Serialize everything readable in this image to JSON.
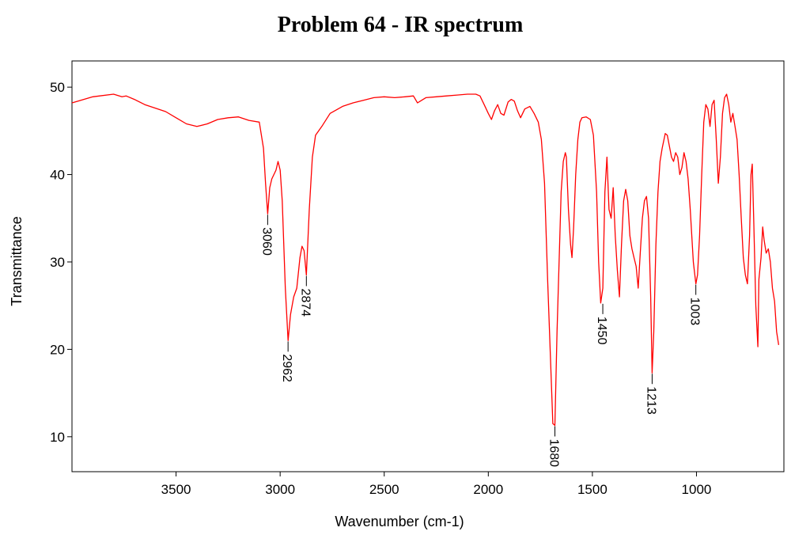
{
  "chart_data": {
    "type": "line",
    "title": "Problem 64 - IR spectrum",
    "xlabel": "Wavenumber (cm-1)",
    "ylabel": "Transmittance",
    "xlim": [
      4000,
      580
    ],
    "ylim": [
      6,
      53
    ],
    "x_reversed": true,
    "x_ticks": [
      3500,
      3000,
      2500,
      2000,
      1500,
      1000
    ],
    "y_ticks": [
      10,
      20,
      30,
      40,
      50
    ],
    "grid": false,
    "legend": "none",
    "series": [
      {
        "color": "#ff0000",
        "points": [
          [
            4000,
            48.2
          ],
          [
            3900,
            48.9
          ],
          [
            3800,
            49.2
          ],
          [
            3760,
            48.9
          ],
          [
            3740,
            49.0
          ],
          [
            3700,
            48.6
          ],
          [
            3650,
            48.0
          ],
          [
            3600,
            47.6
          ],
          [
            3550,
            47.2
          ],
          [
            3500,
            46.5
          ],
          [
            3450,
            45.8
          ],
          [
            3400,
            45.5
          ],
          [
            3350,
            45.8
          ],
          [
            3300,
            46.3
          ],
          [
            3250,
            46.5
          ],
          [
            3200,
            46.6
          ],
          [
            3150,
            46.2
          ],
          [
            3100,
            46.0
          ],
          [
            3080,
            43.0
          ],
          [
            3070,
            39.0
          ],
          [
            3060,
            35.5
          ],
          [
            3050,
            38.5
          ],
          [
            3040,
            39.5
          ],
          [
            3020,
            40.5
          ],
          [
            3010,
            41.5
          ],
          [
            3000,
            40.5
          ],
          [
            2990,
            37.0
          ],
          [
            2975,
            27.0
          ],
          [
            2962,
            21.0
          ],
          [
            2950,
            24.0
          ],
          [
            2935,
            26.0
          ],
          [
            2920,
            27.0
          ],
          [
            2905,
            30.5
          ],
          [
            2895,
            31.8
          ],
          [
            2885,
            31.3
          ],
          [
            2874,
            28.5
          ],
          [
            2860,
            36.0
          ],
          [
            2845,
            42.0
          ],
          [
            2830,
            44.5
          ],
          [
            2800,
            45.5
          ],
          [
            2760,
            47.0
          ],
          [
            2700,
            47.8
          ],
          [
            2650,
            48.2
          ],
          [
            2600,
            48.5
          ],
          [
            2550,
            48.8
          ],
          [
            2500,
            48.9
          ],
          [
            2450,
            48.8
          ],
          [
            2400,
            48.9
          ],
          [
            2360,
            49.0
          ],
          [
            2340,
            48.2
          ],
          [
            2320,
            48.5
          ],
          [
            2300,
            48.8
          ],
          [
            2250,
            48.9
          ],
          [
            2200,
            49.0
          ],
          [
            2150,
            49.1
          ],
          [
            2100,
            49.2
          ],
          [
            2060,
            49.2
          ],
          [
            2040,
            49.0
          ],
          [
            2020,
            48.0
          ],
          [
            2000,
            47.0
          ],
          [
            1985,
            46.3
          ],
          [
            1970,
            47.3
          ],
          [
            1955,
            48.0
          ],
          [
            1940,
            47.0
          ],
          [
            1925,
            46.8
          ],
          [
            1905,
            48.3
          ],
          [
            1890,
            48.6
          ],
          [
            1875,
            48.4
          ],
          [
            1860,
            47.3
          ],
          [
            1845,
            46.5
          ],
          [
            1825,
            47.5
          ],
          [
            1800,
            47.8
          ],
          [
            1780,
            47.0
          ],
          [
            1760,
            46.0
          ],
          [
            1745,
            44.0
          ],
          [
            1730,
            39.0
          ],
          [
            1715,
            28.0
          ],
          [
            1700,
            18.0
          ],
          [
            1690,
            11.5
          ],
          [
            1680,
            11.3
          ],
          [
            1670,
            22.0
          ],
          [
            1660,
            30.0
          ],
          [
            1650,
            38.0
          ],
          [
            1640,
            41.5
          ],
          [
            1630,
            42.5
          ],
          [
            1625,
            42.0
          ],
          [
            1615,
            36.0
          ],
          [
            1605,
            32.0
          ],
          [
            1598,
            30.5
          ],
          [
            1590,
            34.0
          ],
          [
            1580,
            40.0
          ],
          [
            1570,
            44.0
          ],
          [
            1560,
            46.0
          ],
          [
            1550,
            46.5
          ],
          [
            1530,
            46.6
          ],
          [
            1510,
            46.3
          ],
          [
            1495,
            44.5
          ],
          [
            1480,
            38.0
          ],
          [
            1470,
            30.0
          ],
          [
            1460,
            25.3
          ],
          [
            1450,
            27.0
          ],
          [
            1440,
            38.0
          ],
          [
            1430,
            42.0
          ],
          [
            1420,
            36.0
          ],
          [
            1410,
            35.0
          ],
          [
            1400,
            38.5
          ],
          [
            1390,
            33.0
          ],
          [
            1380,
            29.0
          ],
          [
            1370,
            26.0
          ],
          [
            1360,
            32.0
          ],
          [
            1350,
            37.0
          ],
          [
            1340,
            38.3
          ],
          [
            1330,
            37.0
          ],
          [
            1320,
            33.0
          ],
          [
            1310,
            31.5
          ],
          [
            1300,
            30.5
          ],
          [
            1290,
            29.5
          ],
          [
            1280,
            27.0
          ],
          [
            1270,
            31.0
          ],
          [
            1260,
            35.0
          ],
          [
            1250,
            37.0
          ],
          [
            1240,
            37.5
          ],
          [
            1230,
            35.0
          ],
          [
            1220,
            26.0
          ],
          [
            1213,
            17.3
          ],
          [
            1205,
            22.0
          ],
          [
            1195,
            32.0
          ],
          [
            1185,
            38.0
          ],
          [
            1175,
            41.5
          ],
          [
            1165,
            43.0
          ],
          [
            1150,
            44.7
          ],
          [
            1140,
            44.5
          ],
          [
            1120,
            42.0
          ],
          [
            1110,
            41.5
          ],
          [
            1100,
            42.5
          ],
          [
            1090,
            42.0
          ],
          [
            1080,
            40.0
          ],
          [
            1070,
            40.8
          ],
          [
            1060,
            42.5
          ],
          [
            1050,
            41.5
          ],
          [
            1040,
            39.5
          ],
          [
            1030,
            36.0
          ],
          [
            1015,
            30.0
          ],
          [
            1003,
            27.5
          ],
          [
            995,
            28.5
          ],
          [
            985,
            33.0
          ],
          [
            975,
            40.0
          ],
          [
            965,
            46.0
          ],
          [
            955,
            48.0
          ],
          [
            945,
            47.5
          ],
          [
            935,
            45.5
          ],
          [
            925,
            48.0
          ],
          [
            915,
            48.5
          ],
          [
            905,
            44.0
          ],
          [
            895,
            39.0
          ],
          [
            885,
            42.0
          ],
          [
            875,
            47.0
          ],
          [
            865,
            48.8
          ],
          [
            855,
            49.2
          ],
          [
            845,
            48.0
          ],
          [
            835,
            46.0
          ],
          [
            825,
            47.0
          ],
          [
            815,
            45.5
          ],
          [
            805,
            44.0
          ],
          [
            795,
            40.0
          ],
          [
            785,
            35.0
          ],
          [
            775,
            30.5
          ],
          [
            765,
            28.5
          ],
          [
            755,
            27.5
          ],
          [
            745,
            33.0
          ],
          [
            738,
            40.0
          ],
          [
            732,
            41.2
          ],
          [
            725,
            35.0
          ],
          [
            715,
            25.0
          ],
          [
            705,
            20.3
          ],
          [
            700,
            28.0
          ],
          [
            690,
            30.5
          ],
          [
            682,
            34.0
          ],
          [
            675,
            32.5
          ],
          [
            665,
            31.0
          ],
          [
            655,
            31.5
          ],
          [
            645,
            30.0
          ],
          [
            635,
            27.0
          ],
          [
            625,
            25.5
          ],
          [
            615,
            22.0
          ],
          [
            605,
            20.5
          ]
        ]
      }
    ],
    "annotations": [
      {
        "label": "3060",
        "x": 3060,
        "y": 35.5
      },
      {
        "label": "2962",
        "x": 2962,
        "y": 21.0
      },
      {
        "label": "2874",
        "x": 2874,
        "y": 28.5
      },
      {
        "label": "1680",
        "x": 1680,
        "y": 11.3
      },
      {
        "label": "1450",
        "x": 1450,
        "y": 25.3
      },
      {
        "label": "1213",
        "x": 1213,
        "y": 17.3
      },
      {
        "label": "1003",
        "x": 1003,
        "y": 27.5
      }
    ]
  }
}
